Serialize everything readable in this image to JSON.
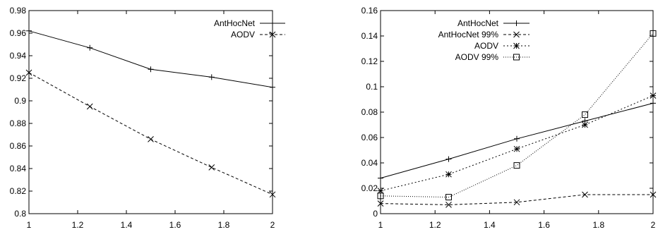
{
  "chart_data": [
    {
      "type": "line",
      "title": "",
      "xlabel": "",
      "ylabel": "",
      "xlim": [
        1,
        2
      ],
      "ylim": [
        0.8,
        0.98
      ],
      "xticks": [
        "1",
        "1.2",
        "1.4",
        "1.6",
        "1.8",
        "2"
      ],
      "yticks": [
        "0.8",
        "0.82",
        "0.84",
        "0.86",
        "0.88",
        "0.9",
        "0.92",
        "0.94",
        "0.96",
        "0.98"
      ],
      "legend_position": "top-right",
      "grid": false,
      "x": [
        1,
        1.25,
        1.5,
        1.75,
        2
      ],
      "series": [
        {
          "name": "AntHocNet",
          "marker": "plus",
          "dash": "solid",
          "values": [
            0.962,
            0.947,
            0.928,
            0.921,
            0.912
          ]
        },
        {
          "name": "AODV",
          "marker": "cross",
          "dash": "dashed",
          "values": [
            0.925,
            0.895,
            0.866,
            0.841,
            0.817
          ]
        }
      ]
    },
    {
      "type": "line",
      "title": "",
      "xlabel": "",
      "ylabel": "",
      "xlim": [
        1,
        2
      ],
      "ylim": [
        0,
        0.16
      ],
      "xticks": [
        "1",
        "1.2",
        "1.4",
        "1.6",
        "1.8",
        "2"
      ],
      "yticks": [
        "0",
        "0.02",
        "0.04",
        "0.06",
        "0.08",
        "0.1",
        "0.12",
        "0.14",
        "0.16"
      ],
      "legend_position": "top-left",
      "grid": false,
      "x": [
        1,
        1.25,
        1.5,
        1.75,
        2
      ],
      "series": [
        {
          "name": "AntHocNet",
          "marker": "plus",
          "dash": "solid",
          "values": [
            0.028,
            0.043,
            0.059,
            0.073,
            0.087
          ]
        },
        {
          "name": "AntHocNet 99%",
          "marker": "cross",
          "dash": "dashed",
          "values": [
            0.008,
            0.007,
            0.009,
            0.015,
            0.015
          ]
        },
        {
          "name": "AODV",
          "marker": "star",
          "dash": "dotted",
          "values": [
            0.018,
            0.031,
            0.051,
            0.07,
            0.093
          ]
        },
        {
          "name": "AODV 99%",
          "marker": "square",
          "dash": "densedot",
          "values": [
            0.014,
            0.013,
            0.038,
            0.078,
            0.142
          ]
        }
      ]
    }
  ]
}
